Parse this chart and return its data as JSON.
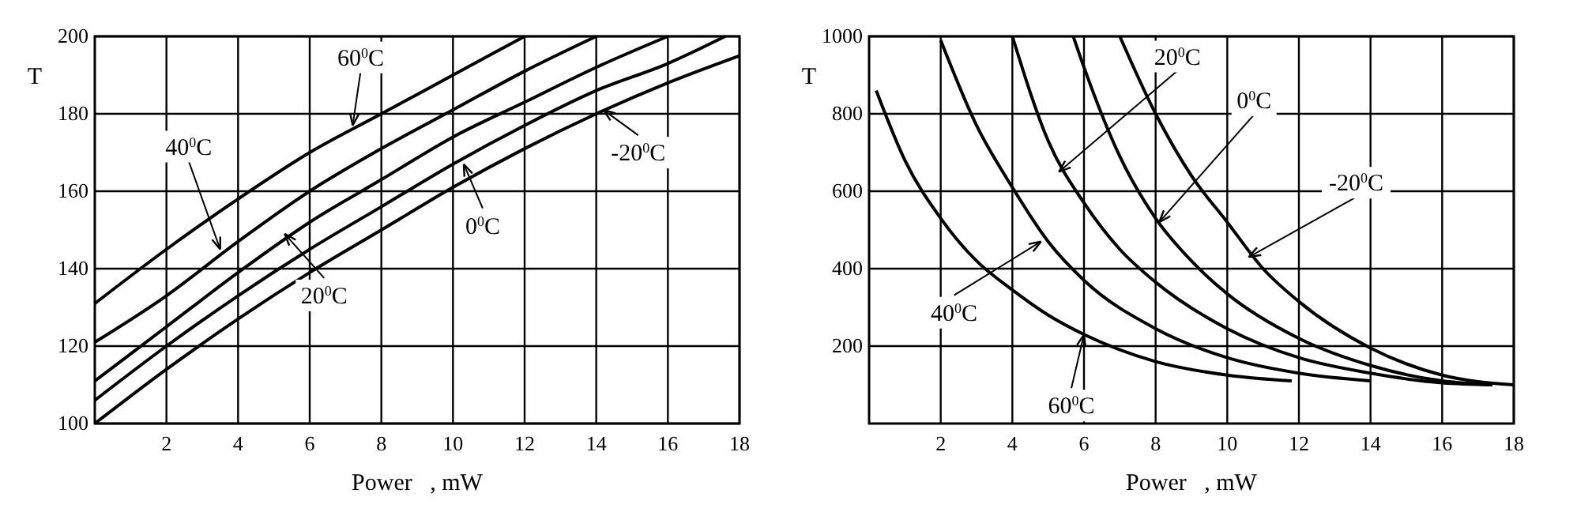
{
  "chart_data": [
    {
      "type": "line",
      "xlabel": "Power   , mW",
      "ylabel": "T",
      "xlim": [
        0,
        18
      ],
      "ylim": [
        100,
        200
      ],
      "xticks": [
        2,
        4,
        6,
        8,
        10,
        12,
        14,
        16,
        18
      ],
      "yticks": [
        100,
        120,
        140,
        160,
        180,
        200
      ],
      "grid": true,
      "marker": "none",
      "line_style": "solid",
      "series": [
        {
          "color": "#000000",
          "x": [
            0,
            2,
            4,
            6,
            8,
            10,
            12
          ],
          "values": [
            131,
            145,
            158,
            170,
            180,
            190,
            200
          ]
        },
        {
          "color": "#000000",
          "x": [
            0,
            2,
            4,
            6,
            8,
            10,
            12,
            14
          ],
          "values": [
            121,
            133,
            147,
            160,
            171,
            181,
            191,
            200
          ]
        },
        {
          "color": "#000000",
          "x": [
            0,
            2,
            4,
            6,
            8,
            10,
            12,
            14,
            16
          ],
          "values": [
            111,
            125,
            139,
            152,
            163,
            174,
            183,
            192,
            200
          ]
        },
        {
          "color": "#000000",
          "x": [
            0,
            2,
            4,
            6,
            8,
            10,
            12,
            14,
            16,
            17.6
          ],
          "values": [
            106,
            120,
            133,
            145,
            156,
            167,
            177,
            186,
            193,
            200
          ]
        },
        {
          "color": "#000000",
          "x": [
            0,
            2,
            4,
            6,
            8,
            10,
            12,
            14,
            16,
            18
          ],
          "values": [
            100,
            114,
            127,
            139,
            150,
            161,
            171,
            180,
            188,
            195
          ]
        }
      ],
      "annotations": [
        {
          "text": "60$^{0}$C",
          "x": 7.2,
          "y": 177
        },
        {
          "text": "40$^{0}$C",
          "x": 3.5,
          "y": 145
        },
        {
          "text": "20$^{0}$C",
          "x": 5.3,
          "y": 149
        },
        {
          "text": "0$^{0}$C",
          "x": 10.3,
          "y": 167
        },
        {
          "text": "-20$^{0}$C",
          "x": 14.2,
          "y": 181
        }
      ]
    },
    {
      "type": "line",
      "xlabel": "Power   , mW",
      "ylabel": "T",
      "xlim": [
        0,
        18
      ],
      "ylim": [
        0,
        1000
      ],
      "xticks": [
        2,
        4,
        6,
        8,
        10,
        12,
        14,
        16,
        18
      ],
      "yticks": [
        200,
        400,
        600,
        800,
        1000
      ],
      "grid": true,
      "marker": "none",
      "line_style": "solid",
      "series": [
        {
          "color": "#000000",
          "x": [
            0.2,
            1,
            2,
            3,
            4,
            5,
            6,
            8,
            10,
            11.8
          ],
          "values": [
            860,
            680,
            530,
            420,
            345,
            280,
            230,
            160,
            125,
            110
          ]
        },
        {
          "color": "#000000",
          "x": [
            2,
            3,
            4,
            5,
            6,
            8,
            10,
            12,
            14
          ],
          "values": [
            990,
            770,
            610,
            470,
            370,
            245,
            170,
            130,
            110
          ]
        },
        {
          "color": "#000000",
          "x": [
            4,
            5,
            6,
            7,
            8,
            10,
            12,
            14,
            16,
            17.4
          ],
          "values": [
            1000,
            730,
            570,
            450,
            365,
            245,
            170,
            130,
            105,
            100
          ]
        },
        {
          "color": "#000000",
          "x": [
            5.7,
            6,
            7,
            8,
            9,
            10,
            12,
            14,
            16,
            17.4
          ],
          "values": [
            1000,
            920,
            690,
            530,
            420,
            335,
            220,
            150,
            110,
            100
          ]
        },
        {
          "color": "#000000",
          "x": [
            7,
            8,
            9,
            10,
            11,
            12,
            14,
            16,
            18
          ],
          "values": [
            1000,
            800,
            640,
            520,
            400,
            315,
            195,
            125,
            100
          ]
        }
      ],
      "annotations": [
        {
          "text": "60$^{0}$C",
          "x": 6,
          "y": 230
        },
        {
          "text": "40$^{0}$C",
          "x": 4.8,
          "y": 470
        },
        {
          "text": "20$^{0}$C",
          "x": 5.3,
          "y": 650
        },
        {
          "text": "0$^{0}$C",
          "x": 8.1,
          "y": 520
        },
        {
          "text": "-20$^{0}$C",
          "x": 10.6,
          "y": 430
        }
      ]
    }
  ]
}
